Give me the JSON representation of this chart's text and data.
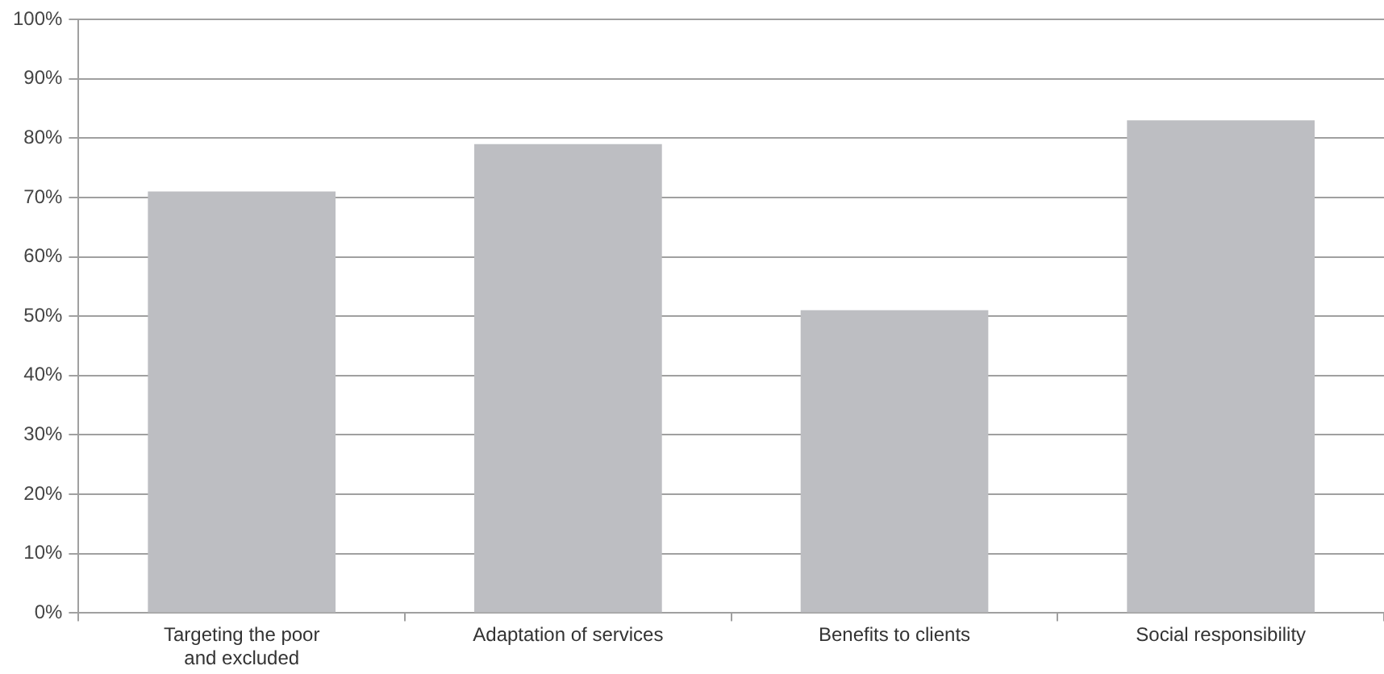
{
  "chart_data": {
    "type": "bar",
    "categories": [
      "Targeting the poor\nand excluded",
      "Adaptation of services",
      "Benefits to clients",
      "Social responsibility"
    ],
    "values": [
      71,
      79,
      51,
      83
    ],
    "color": "#bdbec2",
    "ylim": [
      0,
      100
    ],
    "yticks": [
      {
        "value": 0,
        "label": "0%"
      },
      {
        "value": 10,
        "label": "10%"
      },
      {
        "value": 20,
        "label": "20%"
      },
      {
        "value": 30,
        "label": "30%"
      },
      {
        "value": 40,
        "label": "40%"
      },
      {
        "value": 50,
        "label": "50%"
      },
      {
        "value": 60,
        "label": "60%"
      },
      {
        "value": 70,
        "label": "70%"
      },
      {
        "value": 80,
        "label": "80%"
      },
      {
        "value": 90,
        "label": "90%"
      },
      {
        "value": 100,
        "label": "100%"
      }
    ],
    "grid": "y"
  }
}
